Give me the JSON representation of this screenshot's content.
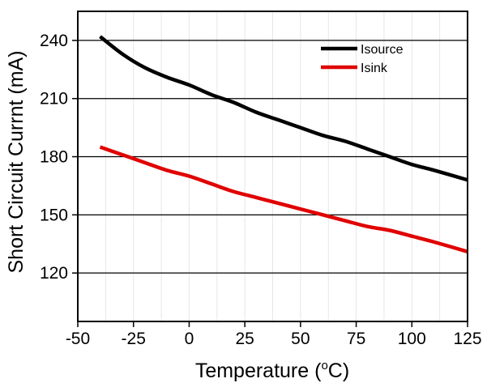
{
  "chart_data": {
    "type": "line",
    "xlabel": "Temperature (",
    "xlabel_unit_sup": "o",
    "xlabel_unit": "C)",
    "ylabel": "Short Circuit Currnt (mA)",
    "xlim": [
      -50,
      125
    ],
    "ylim": [
      95,
      255
    ],
    "xticks": [
      -50,
      -25,
      0,
      25,
      50,
      75,
      100,
      125
    ],
    "yticks": [
      120,
      150,
      180,
      210,
      240
    ],
    "grid": {
      "horizontal": true,
      "vertical_minor": true
    },
    "legend_position": "top-right",
    "series": [
      {
        "name": "Isource",
        "color": "#000000",
        "x": [
          -40,
          -30,
          -20,
          -10,
          0,
          10,
          20,
          30,
          40,
          50,
          60,
          70,
          80,
          90,
          100,
          110,
          125
        ],
        "y": [
          242,
          233,
          226,
          221,
          217,
          212,
          208,
          203,
          199,
          195,
          191,
          188,
          184,
          180,
          176,
          173,
          168
        ]
      },
      {
        "name": "Isink",
        "color": "#e00000",
        "x": [
          -40,
          -30,
          -20,
          -10,
          0,
          10,
          20,
          30,
          40,
          50,
          60,
          70,
          80,
          90,
          100,
          110,
          125
        ],
        "y": [
          185,
          181,
          177,
          173,
          170,
          166,
          162,
          159,
          156,
          153,
          150,
          147,
          144,
          142,
          139,
          136,
          131
        ]
      }
    ]
  }
}
